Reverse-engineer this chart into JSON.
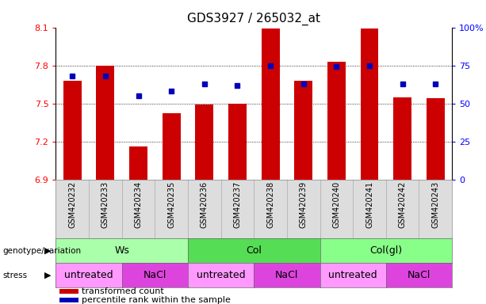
{
  "title": "GDS3927 / 265032_at",
  "samples": [
    "GSM420232",
    "GSM420233",
    "GSM420234",
    "GSM420235",
    "GSM420236",
    "GSM420237",
    "GSM420238",
    "GSM420239",
    "GSM420240",
    "GSM420241",
    "GSM420242",
    "GSM420243"
  ],
  "bar_values": [
    7.68,
    7.8,
    7.16,
    7.42,
    7.49,
    7.5,
    8.09,
    7.68,
    7.83,
    8.09,
    7.55,
    7.54
  ],
  "dot_values": [
    68,
    68,
    55,
    58,
    63,
    62,
    75,
    63,
    74,
    75,
    63,
    63
  ],
  "ymin": 6.9,
  "ymax": 8.1,
  "y2min": 0,
  "y2max": 100,
  "yticks": [
    6.9,
    7.2,
    7.5,
    7.8,
    8.1
  ],
  "y2ticks": [
    0,
    25,
    50,
    75,
    100
  ],
  "y2tick_labels": [
    "0",
    "25",
    "50",
    "75",
    "100%"
  ],
  "bar_color": "#cc0000",
  "dot_color": "#0000bb",
  "bar_width": 0.55,
  "genotype_groups": [
    {
      "label": "Ws",
      "start": 0,
      "end": 3,
      "color": "#aaffaa"
    },
    {
      "label": "Col",
      "start": 4,
      "end": 7,
      "color": "#55dd55"
    },
    {
      "label": "Col(gl)",
      "start": 8,
      "end": 11,
      "color": "#88ff88"
    }
  ],
  "stress_groups": [
    {
      "label": "untreated",
      "start": 0,
      "end": 1,
      "color": "#ff99ff"
    },
    {
      "label": "NaCl",
      "start": 2,
      "end": 3,
      "color": "#dd44dd"
    },
    {
      "label": "untreated",
      "start": 4,
      "end": 5,
      "color": "#ff99ff"
    },
    {
      "label": "NaCl",
      "start": 6,
      "end": 7,
      "color": "#dd44dd"
    },
    {
      "label": "untreated",
      "start": 8,
      "end": 9,
      "color": "#ff99ff"
    },
    {
      "label": "NaCl",
      "start": 10,
      "end": 11,
      "color": "#dd44dd"
    }
  ],
  "legend_items": [
    {
      "label": "transformed count",
      "color": "#cc0000"
    },
    {
      "label": "percentile rank within the sample",
      "color": "#0000bb"
    }
  ]
}
